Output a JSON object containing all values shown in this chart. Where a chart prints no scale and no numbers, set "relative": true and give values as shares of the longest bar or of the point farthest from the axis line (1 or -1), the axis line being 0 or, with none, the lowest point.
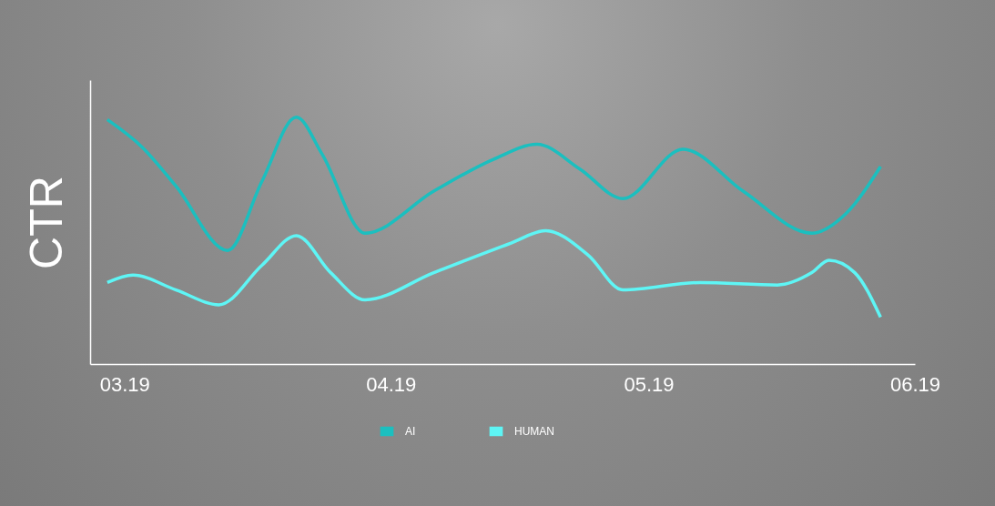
{
  "chart_data": {
    "type": "line",
    "relative": true,
    "ylabel": "CTR",
    "legend": "bottom",
    "xlim": [
      "2019-02-25",
      "2019-06-01"
    ],
    "xticks": [
      {
        "value": "2019-03-01",
        "label": "03.19"
      },
      {
        "value": "2019-04-01",
        "label": "04.19"
      },
      {
        "value": "2019-05-01",
        "label": "05.19"
      },
      {
        "value": "2019-06-01",
        "label": "06.19"
      }
    ],
    "series": [
      {
        "name": "AI",
        "color": "#1bbfbf",
        "x": [
          "2019-02-27",
          "2019-03-03",
          "2019-03-07",
          "2019-03-13",
          "2019-03-17",
          "2019-03-21",
          "2019-03-24",
          "2019-03-29",
          "2019-04-06",
          "2019-04-13",
          "2019-04-18",
          "2019-04-23",
          "2019-04-28",
          "2019-05-05",
          "2019-05-12",
          "2019-05-20",
          "2019-05-24",
          "2019-05-28"
        ],
        "values": [
          0.99,
          0.88,
          0.72,
          0.46,
          0.74,
          1.0,
          0.85,
          0.53,
          0.7,
          0.83,
          0.89,
          0.79,
          0.67,
          0.87,
          0.7,
          0.53,
          0.61,
          0.8
        ]
      },
      {
        "name": "HUMAN",
        "color": "#5ef5f5",
        "x": [
          "2019-02-27",
          "2019-03-02",
          "2019-03-07",
          "2019-03-12",
          "2019-03-17",
          "2019-03-21",
          "2019-03-25",
          "2019-03-29",
          "2019-04-06",
          "2019-04-15",
          "2019-04-19",
          "2019-04-24",
          "2019-04-28",
          "2019-05-07",
          "2019-05-16",
          "2019-05-20",
          "2019-05-22",
          "2019-05-25",
          "2019-05-28"
        ],
        "values": [
          0.33,
          0.36,
          0.3,
          0.24,
          0.4,
          0.52,
          0.37,
          0.26,
          0.37,
          0.49,
          0.54,
          0.44,
          0.3,
          0.33,
          0.32,
          0.37,
          0.42,
          0.37,
          0.19
        ]
      }
    ]
  }
}
